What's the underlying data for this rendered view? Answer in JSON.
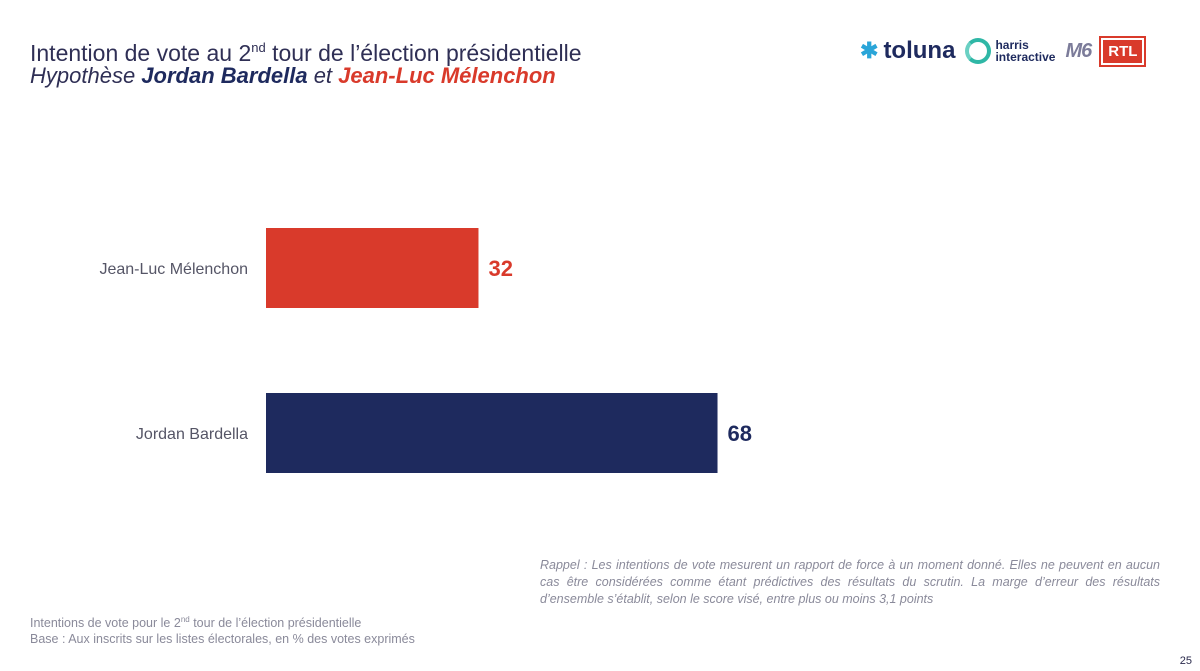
{
  "header": {
    "title_main": "Intention de vote au 2",
    "title_sup": "nd",
    "title_rest": " tour de l’élection présidentielle",
    "subtitle_prefix": "Hypothèse ",
    "subtitle_name1": "Jordan Bardella",
    "subtitle_mid": " et ",
    "subtitle_name2": "Jean-Luc Mélenchon"
  },
  "logos": {
    "toluna": "toluna",
    "harris_line1": "harris",
    "harris_line2": "interactive",
    "m6": "M6",
    "rtl": "RTL"
  },
  "chart_data": {
    "type": "bar",
    "orientation": "horizontal",
    "categories": [
      "Jean-Luc Mélenchon",
      "Jordan Bardella"
    ],
    "values": [
      32,
      68
    ],
    "colors": [
      "#d93a2b",
      "#1e2a5e"
    ],
    "xlim": [
      0,
      100
    ],
    "grid": false
  },
  "footer": {
    "note_line1_a": "Intentions de vote pour le 2",
    "note_line1_sup": "nd",
    "note_line1_b": " tour de l’élection présidentielle",
    "note_line2": "Base : Aux inscrits sur les listes électorales, en % des votes exprimés",
    "reminder": "Rappel : Les intentions de vote mesurent un rapport de force à un moment donné. Elles ne peuvent en aucun cas être considérées comme étant prédictives des résultats du scrutin. La marge d’erreur des résultats d’ensemble s’établit, selon le score visé, entre plus ou moins 3,1 points",
    "page_number": "25"
  }
}
